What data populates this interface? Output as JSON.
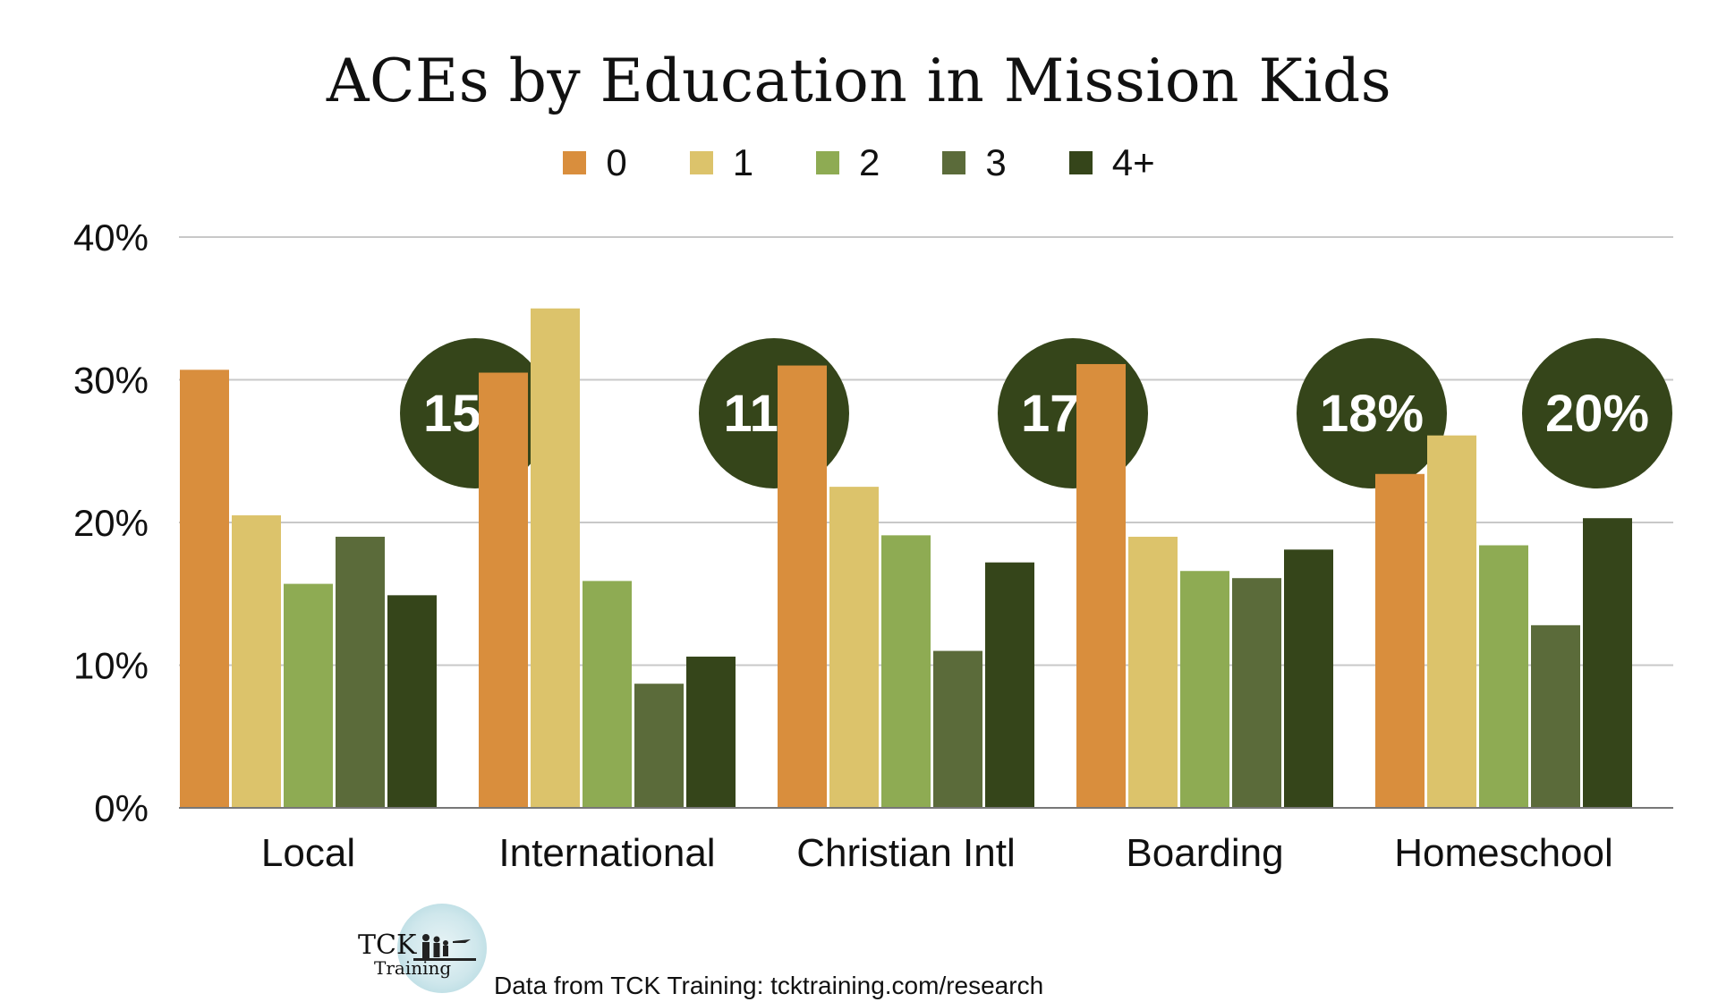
{
  "chart_data": {
    "type": "bar",
    "title": "ACEs by Education in Mission Kids",
    "categories": [
      "Local",
      "International",
      "Christian Intl",
      "Boarding",
      "Homeschool"
    ],
    "series": [
      {
        "name": "0",
        "color": "#D98E3D",
        "values": [
          30.7,
          30.5,
          31.0,
          31.1,
          23.4
        ]
      },
      {
        "name": "1",
        "color": "#DCC36B",
        "values": [
          20.5,
          35.0,
          22.5,
          19.0,
          26.1
        ]
      },
      {
        "name": "2",
        "color": "#8EAB53",
        "values": [
          15.7,
          15.9,
          19.1,
          16.6,
          18.4
        ]
      },
      {
        "name": "3",
        "color": "#5B6B3A",
        "values": [
          19.0,
          8.7,
          11.0,
          16.1,
          12.8
        ]
      },
      {
        "name": "4+",
        "color": "#35451A",
        "values": [
          14.9,
          10.6,
          17.2,
          18.1,
          20.3
        ]
      }
    ],
    "highlights": [
      "15%",
      "11%",
      "17%",
      "18%",
      "20%"
    ],
    "highlight_color": "#35451A",
    "y_ticks": [
      "0%",
      "10%",
      "20%",
      "30%",
      "40%"
    ],
    "ylim": [
      0,
      40
    ],
    "grid": true,
    "legend_position": "top-center"
  },
  "footer": {
    "logo_text_top": "TCK",
    "logo_text_bottom": "Training",
    "source": "Data from TCK Training: tcktraining.com/research"
  }
}
